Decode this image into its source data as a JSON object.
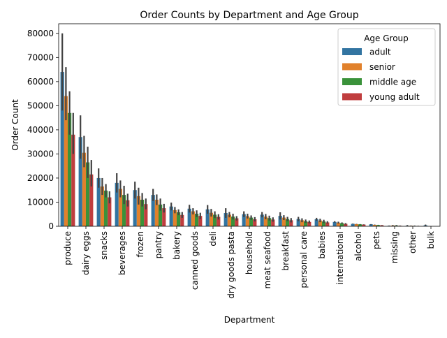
{
  "chart_data": {
    "type": "bar",
    "title": "Order Counts by Department and Age Group",
    "xlabel": "Department",
    "ylabel": "Order Count",
    "ylim": [
      0,
      84000
    ],
    "yticks": [
      0,
      10000,
      20000,
      30000,
      40000,
      50000,
      60000,
      70000,
      80000
    ],
    "ytick_labels": [
      "0",
      "10000",
      "20000",
      "30000",
      "40000",
      "50000",
      "60000",
      "70000",
      "80000"
    ],
    "grid": false,
    "legend": {
      "title": "Age Group",
      "placement": "top-right"
    },
    "categories": [
      "produce",
      "dairy eggs",
      "snacks",
      "beverages",
      "frozen",
      "pantry",
      "bakery",
      "canned goods",
      "deli",
      "dry goods pasta",
      "household",
      "meat seafood",
      "breakfast",
      "personal care",
      "babies",
      "international",
      "alcohol",
      "pets",
      "missing",
      "other",
      "bulk"
    ],
    "series": [
      {
        "name": "adult",
        "color": "#3274a1",
        "values": [
          64000,
          37000,
          20000,
          18000,
          15000,
          13000,
          8200,
          7300,
          7000,
          5500,
          5000,
          4800,
          4300,
          3000,
          2900,
          1800,
          1000,
          800,
          200,
          200,
          400
        ]
      },
      {
        "name": "senior",
        "color": "#e1812c",
        "values": [
          54000,
          30500,
          16500,
          15500,
          12500,
          11000,
          6700,
          6200,
          5600,
          4800,
          4200,
          4000,
          3600,
          2500,
          2400,
          1500,
          900,
          600,
          300,
          200,
          0
        ]
      },
      {
        "name": "middle age",
        "color": "#3a923a",
        "values": [
          47000,
          26500,
          14800,
          13000,
          11000,
          9000,
          5800,
          5200,
          4800,
          4000,
          3600,
          3400,
          3000,
          2100,
          2000,
          1300,
          800,
          500,
          300,
          100,
          0
        ]
      },
      {
        "name": "young adult",
        "color": "#c03d3e",
        "values": [
          38000,
          21500,
          12000,
          10800,
          9200,
          7500,
          4700,
          4300,
          3900,
          3300,
          2900,
          2800,
          2500,
          1800,
          1600,
          1000,
          700,
          400,
          200,
          100,
          0
        ]
      }
    ],
    "error_upper": [
      [
        80000,
        46000,
        24000,
        22000,
        18500,
        15500,
        9800,
        8900,
        8800,
        7500,
        6200,
        5900,
        5800,
        3900,
        3500,
        2100,
        1100,
        900,
        300,
        500,
        700
      ],
      [
        66000,
        37500,
        20000,
        19000,
        16000,
        13200,
        8000,
        7500,
        7200,
        5900,
        5200,
        5100,
        4600,
        3300,
        3100,
        1900,
        1000,
        700,
        500,
        300,
        0
      ],
      [
        56000,
        33000,
        17500,
        16800,
        13800,
        11500,
        7000,
        6600,
        6200,
        5200,
        4500,
        4400,
        3900,
        2800,
        2700,
        1600,
        900,
        600,
        500,
        300,
        0
      ],
      [
        47000,
        27500,
        14500,
        13500,
        11500,
        9300,
        5900,
        5600,
        5000,
        4200,
        3800,
        3700,
        3400,
        2400,
        2100,
        1300,
        800,
        500,
        300,
        200,
        0
      ]
    ],
    "error_lower": [
      [
        48000,
        28000,
        16000,
        14000,
        11500,
        10500,
        6600,
        5700,
        5200,
        3500,
        3800,
        3700,
        2800,
        2100,
        2300,
        1500,
        900,
        700,
        100,
        0,
        100
      ],
      [
        44000,
        24500,
        13000,
        12000,
        9000,
        8800,
        5400,
        4900,
        4000,
        3700,
        3200,
        2900,
        2600,
        1700,
        1700,
        1100,
        800,
        500,
        100,
        100,
        0
      ],
      [
        38000,
        20000,
        12000,
        9200,
        8200,
        6500,
        4600,
        3800,
        3400,
        2800,
        2700,
        2400,
        2100,
        1400,
        1300,
        1000,
        700,
        400,
        100,
        0,
        0
      ],
      [
        30000,
        16500,
        9500,
        8200,
        7000,
        5700,
        3500,
        3000,
        2800,
        2400,
        2000,
        1900,
        1600,
        1200,
        1100,
        700,
        600,
        300,
        100,
        0,
        0
      ]
    ]
  }
}
